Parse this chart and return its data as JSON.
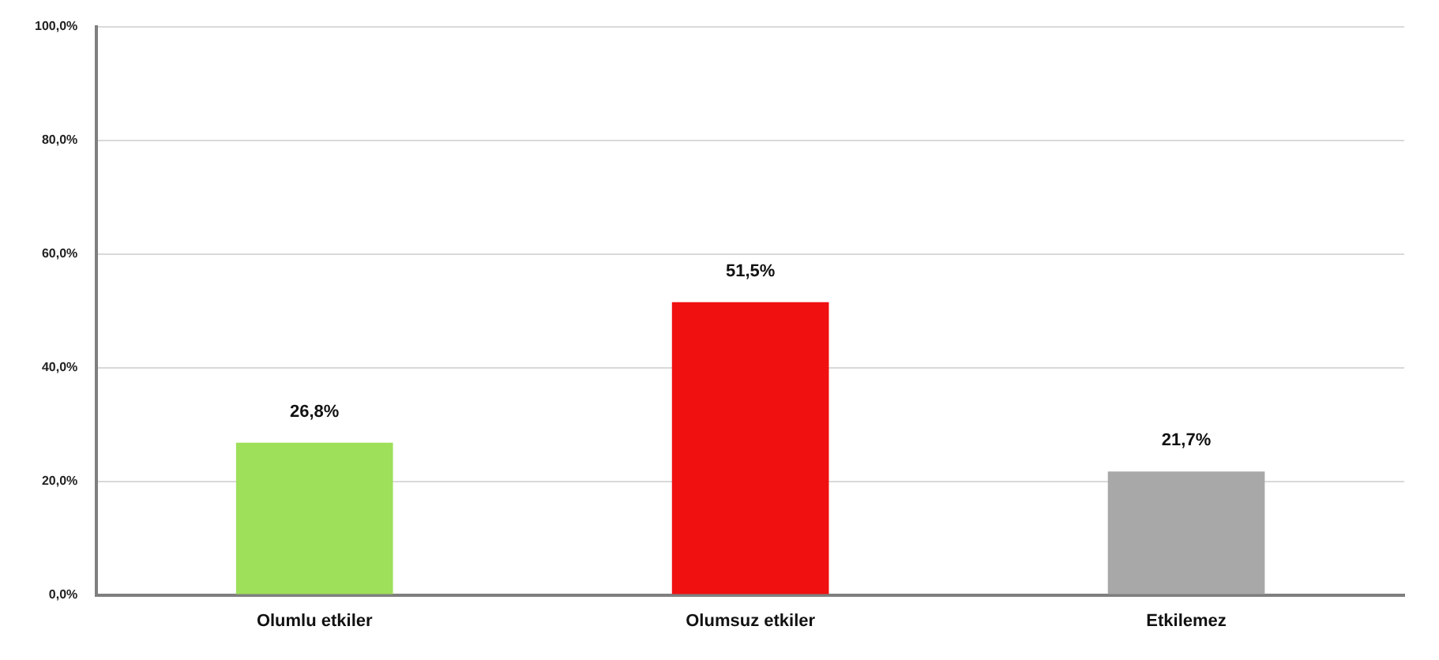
{
  "chart_data": {
    "type": "bar",
    "categories": [
      "Olumlu etkiler",
      "Olumsuz etkiler",
      "Etkilemez"
    ],
    "values": [
      26.8,
      51.5,
      21.7
    ],
    "colors": [
      "#9ee05a",
      "#f01010",
      "#a8a8a8"
    ],
    "value_labels": [
      "26,8%",
      "51,5%",
      "21,7%"
    ],
    "ylim": [
      0,
      100
    ],
    "yticks": [
      {
        "value": 0,
        "label": "0,0%"
      },
      {
        "value": 20,
        "label": "20,0%"
      },
      {
        "value": 40,
        "label": "40,0%"
      },
      {
        "value": 60,
        "label": "60,0%"
      },
      {
        "value": 80,
        "label": "80,0%"
      },
      {
        "value": 100,
        "label": "100,0%"
      }
    ],
    "grid": "y"
  }
}
